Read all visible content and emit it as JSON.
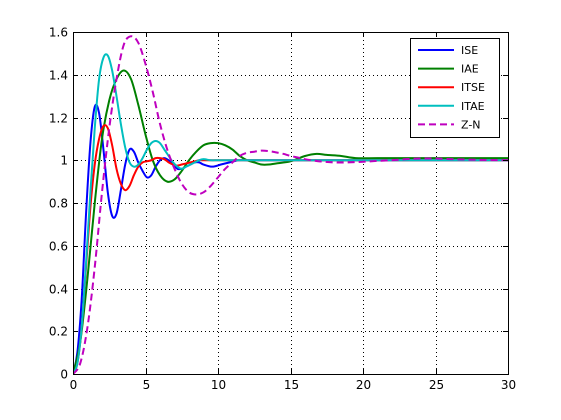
{
  "chart_data": {
    "type": "line",
    "title": "",
    "xlabel": "",
    "ylabel": "",
    "xlim": [
      0,
      30
    ],
    "ylim": [
      0,
      1.6
    ],
    "grid": true,
    "grid_style": "dotted",
    "legend_position": "top-right",
    "x_ticks": [
      0,
      5,
      10,
      15,
      20,
      25,
      30
    ],
    "x_tick_labels": [
      "0",
      "5",
      "10",
      "15",
      "20",
      "25",
      "30"
    ],
    "y_ticks": [
      0,
      0.2,
      0.4,
      0.6,
      0.8,
      1,
      1.2,
      1.4,
      1.6
    ],
    "y_tick_labels": [
      "0",
      "0.2",
      "0.4",
      "0.6",
      "0.8",
      "1",
      "1.2",
      "1.4",
      "1.6"
    ],
    "series": [
      {
        "name": "ISE",
        "color": "#0000ff",
        "dash": "solid",
        "x": [
          0,
          0.3,
          0.6,
          0.9,
          1.2,
          1.5,
          1.8,
          2.1,
          2.4,
          2.7,
          3.0,
          3.3,
          3.6,
          3.9,
          4.2,
          4.5,
          4.8,
          5.1,
          5.4,
          5.7,
          6.0,
          6.3,
          6.6,
          6.9,
          7.2,
          7.5,
          7.8,
          8.1,
          8.4,
          8.7,
          9.0,
          9.6,
          10.2,
          10.8,
          11.4,
          12,
          13,
          14,
          15,
          16,
          18,
          20,
          22,
          24,
          26,
          28,
          30
        ],
        "y": [
          0,
          0.1,
          0.35,
          0.75,
          1.08,
          1.25,
          1.22,
          1.05,
          0.85,
          0.74,
          0.75,
          0.86,
          0.98,
          1.05,
          1.04,
          0.99,
          0.95,
          0.92,
          0.93,
          0.97,
          1.0,
          1.01,
          1.0,
          0.98,
          0.96,
          0.96,
          0.97,
          0.98,
          0.99,
          0.99,
          0.98,
          0.97,
          0.98,
          0.99,
          1.0,
          1.0,
          1.0,
          1.0,
          1.0,
          1.0,
          1.0,
          1.0,
          1.0,
          1.0,
          1.0,
          1.0,
          1.0
        ]
      },
      {
        "name": "IAE",
        "color": "#008000",
        "dash": "solid",
        "x": [
          0,
          0.5,
          1.0,
          1.5,
          2.0,
          2.5,
          3.0,
          3.5,
          4.0,
          4.5,
          5.0,
          5.5,
          6.0,
          6.5,
          7.0,
          7.5,
          8.0,
          8.5,
          9.0,
          9.5,
          10.0,
          10.5,
          11.0,
          11.5,
          12.0,
          12.5,
          13.0,
          13.5,
          14.0,
          15.0,
          16.0,
          16.8,
          17.5,
          18.5,
          19.5,
          21,
          23,
          25,
          27,
          30
        ],
        "y": [
          0,
          0.15,
          0.45,
          0.8,
          1.1,
          1.28,
          1.38,
          1.42,
          1.38,
          1.26,
          1.12,
          1.0,
          0.93,
          0.9,
          0.91,
          0.95,
          1.0,
          1.04,
          1.07,
          1.08,
          1.08,
          1.07,
          1.05,
          1.02,
          1.0,
          0.99,
          0.98,
          0.98,
          0.985,
          0.995,
          1.02,
          1.03,
          1.025,
          1.02,
          1.01,
          1.01,
          1.01,
          1.01,
          1.01,
          1.01
        ]
      },
      {
        "name": "ITSE",
        "color": "#ff0000",
        "dash": "solid",
        "x": [
          0,
          0.3,
          0.6,
          0.9,
          1.2,
          1.5,
          1.8,
          2.1,
          2.4,
          2.7,
          3.0,
          3.3,
          3.6,
          3.9,
          4.2,
          4.5,
          4.8,
          5.1,
          5.4,
          5.7,
          6.0,
          6.3,
          6.6,
          6.9,
          7.2,
          7.5,
          7.8,
          8.1,
          8.4,
          8.7,
          9.0,
          9.5,
          10,
          11,
          12,
          14,
          16,
          20,
          25,
          30
        ],
        "y": [
          0,
          0.05,
          0.22,
          0.5,
          0.78,
          0.98,
          1.1,
          1.16,
          1.15,
          1.07,
          0.96,
          0.89,
          0.86,
          0.88,
          0.93,
          0.97,
          0.99,
          0.995,
          1.0,
          1.01,
          1.01,
          1.005,
          0.99,
          0.98,
          0.975,
          0.98,
          0.985,
          0.99,
          0.995,
          1.0,
          1.0,
          1.0,
          1.0,
          1.0,
          1.0,
          1.0,
          1.0,
          1.0,
          1.0,
          1.0
        ]
      },
      {
        "name": "ITAE",
        "color": "#00bfbf",
        "dash": "solid",
        "x": [
          0,
          0.3,
          0.6,
          0.9,
          1.2,
          1.5,
          1.8,
          2.1,
          2.4,
          2.7,
          3.0,
          3.3,
          3.6,
          3.9,
          4.2,
          4.5,
          4.8,
          5.1,
          5.4,
          5.7,
          6.0,
          6.3,
          6.6,
          6.9,
          7.2,
          7.5,
          7.8,
          8.1,
          8.4,
          8.7,
          9.0,
          9.5,
          10,
          11,
          12,
          14,
          16,
          20,
          25,
          30
        ],
        "y": [
          0,
          0.05,
          0.22,
          0.52,
          0.85,
          1.15,
          1.38,
          1.48,
          1.49,
          1.42,
          1.3,
          1.17,
          1.06,
          0.99,
          0.97,
          0.98,
          1.01,
          1.05,
          1.08,
          1.09,
          1.08,
          1.05,
          1.02,
          0.99,
          0.97,
          0.96,
          0.97,
          0.98,
          0.99,
          1.0,
          1.005,
          1.0,
          1.0,
          1.0,
          1.0,
          1.0,
          1.0,
          1.0,
          1.0,
          1.0
        ]
      },
      {
        "name": "Z-N",
        "color": "#bf00bf",
        "dash": "dashed",
        "x": [
          0,
          0.5,
          1.0,
          1.5,
          2.0,
          2.5,
          3.0,
          3.5,
          4.0,
          4.5,
          5.0,
          5.5,
          6.0,
          6.5,
          7.0,
          7.5,
          8.0,
          8.5,
          9.0,
          9.5,
          10.0,
          10.5,
          11.0,
          11.5,
          12.0,
          12.5,
          13.0,
          13.5,
          14.0,
          14.5,
          15.0,
          15.5,
          16.0,
          17.0,
          18.0,
          19.0,
          20.0,
          21.0,
          22.0,
          23.0,
          24.0,
          25.0,
          26.0,
          28.0,
          30.0
        ],
        "y": [
          0,
          0.05,
          0.22,
          0.5,
          0.85,
          1.15,
          1.38,
          1.54,
          1.58,
          1.55,
          1.45,
          1.32,
          1.17,
          1.05,
          0.96,
          0.89,
          0.85,
          0.84,
          0.85,
          0.88,
          0.92,
          0.96,
          0.99,
          1.02,
          1.035,
          1.04,
          1.045,
          1.043,
          1.037,
          1.03,
          1.02,
          1.013,
          1.005,
          0.995,
          0.99,
          0.99,
          0.993,
          0.997,
          1.0,
          1.005,
          1.008,
          1.008,
          1.005,
          1.002,
          1.0
        ]
      }
    ]
  }
}
